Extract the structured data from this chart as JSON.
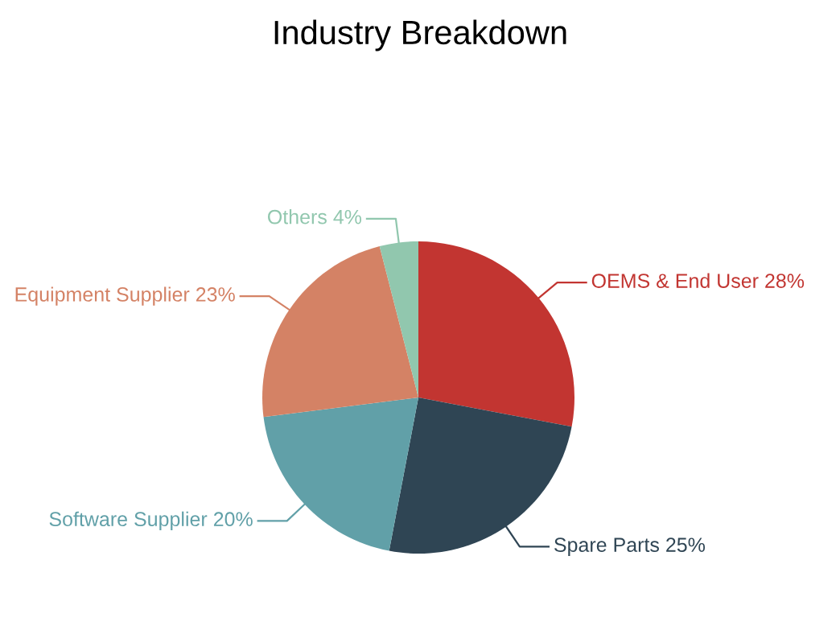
{
  "chart_data": {
    "type": "pie",
    "title": "Industry Breakdown",
    "categories": [
      "OEMS & End User",
      "Spare Parts",
      "Software Supplier",
      "Equipment Supplier",
      "Others"
    ],
    "values": [
      28,
      25,
      20,
      23,
      4
    ],
    "value_labels": [
      "28%",
      "25%",
      "20%",
      "23%",
      "4%"
    ],
    "colors": [
      "#c23531",
      "#2f4554",
      "#61a0a8",
      "#d48265",
      "#91c7ae"
    ],
    "legend": false
  }
}
